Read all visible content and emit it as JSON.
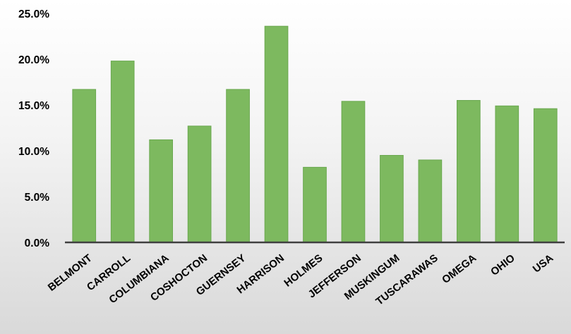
{
  "chart_data": {
    "type": "bar",
    "categories": [
      "BELMONT",
      "CARROLL",
      "COLUMBIANA",
      "COSHOCTON",
      "GUERNSEY",
      "HARRISON",
      "HOLMES",
      "JEFFERSON",
      "MUSKINGUM",
      "TUSCARAWAS",
      "OMEGA",
      "OHIO",
      "USA"
    ],
    "values": [
      16.7,
      19.8,
      11.2,
      12.7,
      16.7,
      23.6,
      8.2,
      15.4,
      9.5,
      9.0,
      15.5,
      14.9,
      14.6
    ],
    "ylim": [
      0,
      25
    ],
    "yticks": [
      0,
      5,
      10,
      15,
      20,
      25
    ],
    "ytick_labels": [
      "0.0%",
      "5.0%",
      "10.0%",
      "15.0%",
      "20.0%",
      "25.0%"
    ],
    "title": "",
    "xlabel": "",
    "ylabel": "",
    "grid": false,
    "legend": "none",
    "bar_color": "#7db95f",
    "bar_edge_color": "#6aa84f",
    "axis_color": "#404040"
  }
}
